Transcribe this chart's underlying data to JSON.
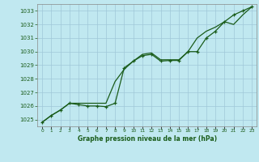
{
  "xlabel": "Graphe pression niveau de la mer (hPa)",
  "background_color": "#c0e8f0",
  "plot_bg_color": "#c0e8f0",
  "grid_color": "#a0c8d8",
  "line_color": "#1a5c1a",
  "marker_color": "#1a5c1a",
  "ylim": [
    1024.5,
    1033.5
  ],
  "xlim": [
    -0.5,
    23.5
  ],
  "yticks": [
    1025,
    1026,
    1027,
    1028,
    1029,
    1030,
    1031,
    1032,
    1033
  ],
  "xticks": [
    0,
    1,
    2,
    3,
    4,
    5,
    6,
    7,
    8,
    9,
    10,
    11,
    12,
    13,
    14,
    15,
    16,
    17,
    18,
    19,
    20,
    21,
    22,
    23
  ],
  "series1_x": [
    0,
    1,
    2,
    3,
    4,
    5,
    6,
    7,
    8,
    9,
    10,
    11,
    12,
    13,
    14,
    15,
    16,
    17,
    18,
    19,
    20,
    21,
    22,
    23
  ],
  "series1_y": [
    1024.8,
    1025.3,
    1025.7,
    1026.2,
    1026.2,
    1026.2,
    1026.2,
    1026.2,
    1027.8,
    1028.7,
    1029.3,
    1029.8,
    1029.9,
    1029.4,
    1029.4,
    1029.4,
    1030.0,
    1031.0,
    1031.5,
    1031.8,
    1032.2,
    1032.0,
    1032.7,
    1033.3
  ],
  "series2_x": [
    0,
    1,
    2,
    3,
    4,
    5,
    6,
    7,
    8,
    9,
    10,
    11,
    12,
    13,
    14,
    15,
    16,
    17,
    18,
    19,
    20,
    21,
    22,
    23
  ],
  "series2_y": [
    1024.8,
    1025.3,
    1025.7,
    1026.2,
    1026.1,
    1026.0,
    1026.0,
    1025.95,
    1026.2,
    1028.8,
    1029.3,
    1029.7,
    1029.8,
    1029.3,
    1029.35,
    1029.35,
    1030.0,
    1030.0,
    1031.0,
    1031.5,
    1032.2,
    1032.7,
    1033.0,
    1033.3
  ]
}
